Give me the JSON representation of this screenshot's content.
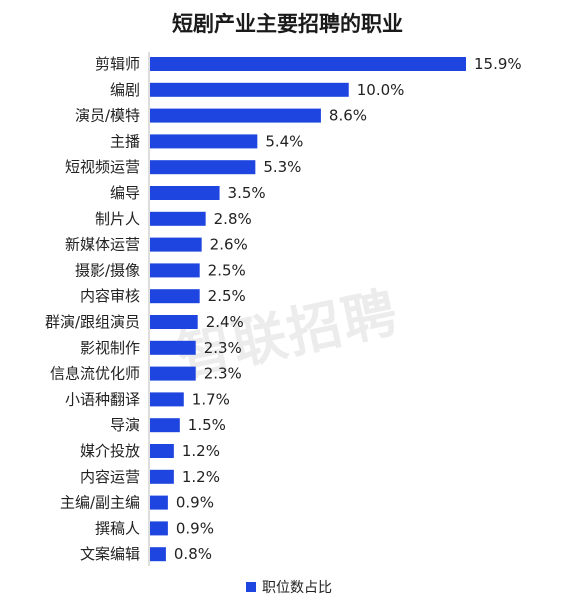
{
  "chart_data": {
    "type": "bar",
    "orientation": "horizontal",
    "title": "短剧产业主要招聘的职业",
    "categories": [
      "剪辑师",
      "编剧",
      "演员/模特",
      "主播",
      "短视频运营",
      "编导",
      "制片人",
      "新媒体运营",
      "摄影/摄像",
      "内容审核",
      "群演/跟组演员",
      "影视制作",
      "信息流优化师",
      "小语种翻译",
      "导演",
      "媒介投放",
      "内容运营",
      "主编/副主编",
      "撰稿人",
      "文案编辑"
    ],
    "values": [
      15.9,
      10.0,
      8.6,
      5.4,
      5.3,
      3.5,
      2.8,
      2.6,
      2.5,
      2.5,
      2.4,
      2.3,
      2.3,
      1.7,
      1.5,
      1.2,
      1.2,
      0.9,
      0.9,
      0.8
    ],
    "value_labels": [
      "15.9%",
      "10.0%",
      "8.6%",
      "5.4%",
      "5.3%",
      "3.5%",
      "2.8%",
      "2.6%",
      "2.5%",
      "2.5%",
      "2.4%",
      "2.3%",
      "2.3%",
      "1.7%",
      "1.5%",
      "1.2%",
      "1.2%",
      "0.9%",
      "0.9%",
      "0.8%"
    ],
    "series": [
      {
        "name": "职位数占比"
      }
    ],
    "xlim": [
      0,
      15.9
    ],
    "grid": false,
    "legend_position": "bottom-center",
    "bar_color": "#1f45e0"
  },
  "watermark": "智联招聘"
}
